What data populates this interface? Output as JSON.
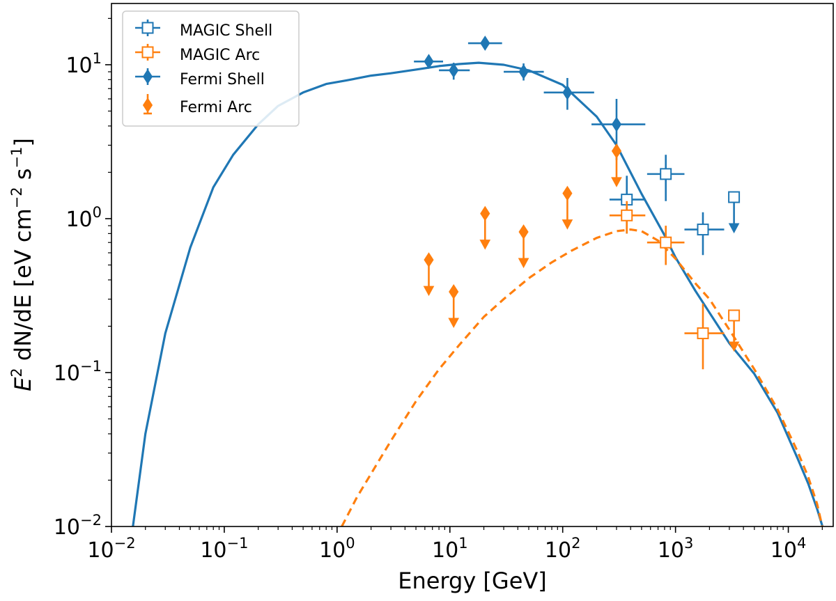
{
  "chart_data": {
    "type": "scatter",
    "xscale": "log",
    "yscale": "log",
    "xlim": [
      0.01,
      25000
    ],
    "ylim": [
      0.01,
      25
    ],
    "xlabel": "Energy [GeV]",
    "ylabel": {
      "main": "E",
      "sup": "2",
      "mid": " dN/dE [eV cm",
      "sup2": "−2",
      "mid2": " s",
      "sup3": "−1",
      "end": "]"
    },
    "xticks": [
      {
        "value": 0.01,
        "base": "10",
        "exp": "−2"
      },
      {
        "value": 0.1,
        "base": "10",
        "exp": "−1"
      },
      {
        "value": 1,
        "base": "10",
        "exp": "0"
      },
      {
        "value": 10,
        "base": "10",
        "exp": "1"
      },
      {
        "value": 100,
        "base": "10",
        "exp": "2"
      },
      {
        "value": 1000,
        "base": "10",
        "exp": "3"
      },
      {
        "value": 10000,
        "base": "10",
        "exp": "4"
      }
    ],
    "yticks": [
      {
        "value": 0.01,
        "base": "10",
        "exp": "−2"
      },
      {
        "value": 0.1,
        "base": "10",
        "exp": "−1"
      },
      {
        "value": 1,
        "base": "10",
        "exp": "0"
      },
      {
        "value": 10,
        "base": "10",
        "exp": "1"
      }
    ],
    "legend": {
      "location": "upper left",
      "entries": [
        {
          "label": "MAGIC Shell",
          "color": "#1f77b4",
          "marker": "open-square"
        },
        {
          "label": "MAGIC Arc",
          "color": "#ff7f0e",
          "marker": "open-square"
        },
        {
          "label": "Fermi Shell",
          "color": "#1f77b4",
          "marker": "diamond"
        },
        {
          "label": "Fermi Arc",
          "color": "#ff7f0e",
          "marker": "diamond"
        }
      ]
    },
    "series": [
      {
        "name": "MAGIC Shell",
        "color": "#1f77b4",
        "marker": "open-square",
        "points": [
          {
            "x": 370,
            "y": 1.33,
            "xlo": 260,
            "xhi": 540,
            "ylo": 0.8,
            "yhi": 1.9
          },
          {
            "x": 820,
            "y": 1.95,
            "xlo": 560,
            "xhi": 1200,
            "ylo": 1.3,
            "yhi": 2.6
          },
          {
            "x": 1750,
            "y": 0.85,
            "xlo": 1200,
            "xhi": 2700,
            "ylo": 0.58,
            "yhi": 1.1
          }
        ],
        "upper_limits": [
          {
            "x": 3300,
            "y": 1.38
          }
        ]
      },
      {
        "name": "MAGIC Arc",
        "color": "#ff7f0e",
        "marker": "open-square",
        "points": [
          {
            "x": 370,
            "y": 1.05,
            "xlo": 260,
            "xhi": 540,
            "ylo": 0.8,
            "yhi": 1.3
          },
          {
            "x": 820,
            "y": 0.7,
            "xlo": 560,
            "xhi": 1200,
            "ylo": 0.5,
            "yhi": 0.9
          },
          {
            "x": 1750,
            "y": 0.18,
            "xlo": 1200,
            "xhi": 2700,
            "ylo": 0.105,
            "yhi": 0.28
          }
        ],
        "upper_limits": [
          {
            "x": 3300,
            "y": 0.235
          }
        ]
      },
      {
        "name": "Fermi Shell",
        "color": "#1f77b4",
        "marker": "diamond",
        "points": [
          {
            "x": 6.5,
            "y": 10.5,
            "xlo": 4.8,
            "xhi": 8.7,
            "ylo": 9.5,
            "yhi": 11.5
          },
          {
            "x": 10.8,
            "y": 9.2,
            "xlo": 8.0,
            "xhi": 15,
            "ylo": 8.0,
            "yhi": 10.3
          },
          {
            "x": 20.5,
            "y": 13.8,
            "xlo": 14.5,
            "xhi": 29,
            "ylo": 13.0,
            "yhi": 14.6
          },
          {
            "x": 45,
            "y": 9.0,
            "xlo": 30,
            "xhi": 68,
            "ylo": 7.9,
            "yhi": 10.2
          },
          {
            "x": 110,
            "y": 6.6,
            "xlo": 68,
            "xhi": 190,
            "ylo": 5.1,
            "yhi": 8.2
          },
          {
            "x": 300,
            "y": 4.1,
            "xlo": 180,
            "xhi": 540,
            "ylo": 2.4,
            "yhi": 6.0
          }
        ],
        "upper_limits": []
      },
      {
        "name": "Fermi Arc",
        "color": "#ff7f0e",
        "marker": "diamond",
        "points": [],
        "upper_limits": [
          {
            "x": 6.5,
            "y": 0.54
          },
          {
            "x": 10.8,
            "y": 0.335
          },
          {
            "x": 20.5,
            "y": 1.08
          },
          {
            "x": 45,
            "y": 0.82
          },
          {
            "x": 110,
            "y": 1.46
          },
          {
            "x": 300,
            "y": 2.75
          }
        ]
      }
    ],
    "curves": [
      {
        "name": "model shell",
        "style": "solid",
        "color": "#1f77b4",
        "x": [
          0.0155,
          0.02,
          0.03,
          0.05,
          0.08,
          0.12,
          0.2,
          0.3,
          0.5,
          0.8,
          1.2,
          2,
          3,
          5,
          8,
          12,
          18,
          30,
          50,
          100,
          200,
          300,
          500,
          800,
          1000,
          1500,
          2000,
          3000,
          5000,
          8000,
          12000,
          15000,
          18000,
          21000
        ],
        "y": [
          0.01,
          0.04,
          0.18,
          0.65,
          1.6,
          2.6,
          4.1,
          5.4,
          6.6,
          7.5,
          7.9,
          8.5,
          8.8,
          9.3,
          9.8,
          10.1,
          10.3,
          10.0,
          9.2,
          7.4,
          4.6,
          3.0,
          1.45,
          0.78,
          0.56,
          0.34,
          0.245,
          0.155,
          0.098,
          0.055,
          0.028,
          0.019,
          0.013,
          0.009
        ]
      },
      {
        "name": "model arc",
        "style": "dashed",
        "color": "#ff7f0e",
        "x": [
          1.1,
          1.5,
          2,
          3,
          5,
          8,
          12,
          20,
          30,
          50,
          80,
          120,
          200,
          300,
          400,
          500,
          700,
          1000,
          1500,
          2000,
          3000,
          5000,
          8000,
          12000,
          15000,
          18000,
          20000
        ],
        "y": [
          0.01,
          0.0155,
          0.022,
          0.036,
          0.065,
          0.105,
          0.15,
          0.23,
          0.3,
          0.41,
          0.52,
          0.62,
          0.75,
          0.83,
          0.85,
          0.83,
          0.72,
          0.55,
          0.38,
          0.3,
          0.19,
          0.105,
          0.058,
          0.031,
          0.021,
          0.014,
          0.01
        ]
      }
    ]
  }
}
